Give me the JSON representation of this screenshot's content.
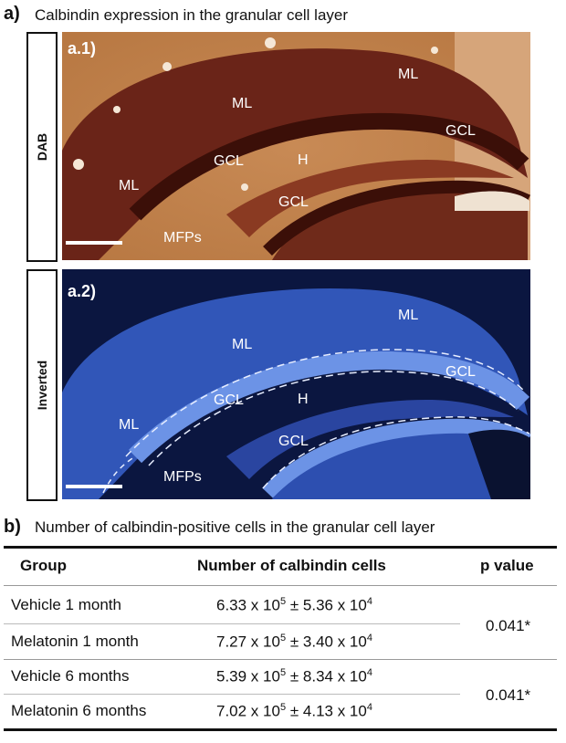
{
  "panel_a": {
    "letter": "a)",
    "title": "Calbindin expression in the granular cell layer",
    "dab": {
      "side_label": "DAB",
      "sub_label": "a.1)",
      "region_labels": [
        "ML",
        "ML",
        "ML",
        "GCL",
        "GCL",
        "H",
        "GCL",
        "MFPs"
      ]
    },
    "inverted": {
      "side_label": "Inverted",
      "sub_label": "a.2)",
      "region_labels": [
        "ML",
        "ML",
        "ML",
        "GCL",
        "GCL",
        "H",
        "GCL",
        "MFPs"
      ]
    }
  },
  "panel_b": {
    "letter": "b)",
    "title": "Number of calbindin-positive cells in the granular cell layer",
    "headers": {
      "group": "Group",
      "count": "Number of calbindin cells",
      "p": "p value"
    },
    "rows": [
      {
        "group": "Vehicle 1 month",
        "mean_mantissa": "6.33 x 10",
        "mean_exp": "5",
        "pm": "±",
        "sem_mantissa": "5.36 x 10",
        "sem_exp": "4"
      },
      {
        "group": "Melatonin 1 month",
        "mean_mantissa": "7.27 x 10",
        "mean_exp": "5",
        "pm": "±",
        "sem_mantissa": "3.40 x 10",
        "sem_exp": "4"
      },
      {
        "group": "Vehicle 6 months",
        "mean_mantissa": "5.39 x 10",
        "mean_exp": "5",
        "pm": "±",
        "sem_mantissa": "8.34 x 10",
        "sem_exp": "4"
      },
      {
        "group": "Melatonin 6 months",
        "mean_mantissa": "7.02 x 10",
        "mean_exp": "5",
        "pm": "±",
        "sem_mantissa": "4.13 x 10",
        "sem_exp": "4"
      }
    ],
    "p_values": [
      "0.041*",
      "0.041*"
    ]
  }
}
